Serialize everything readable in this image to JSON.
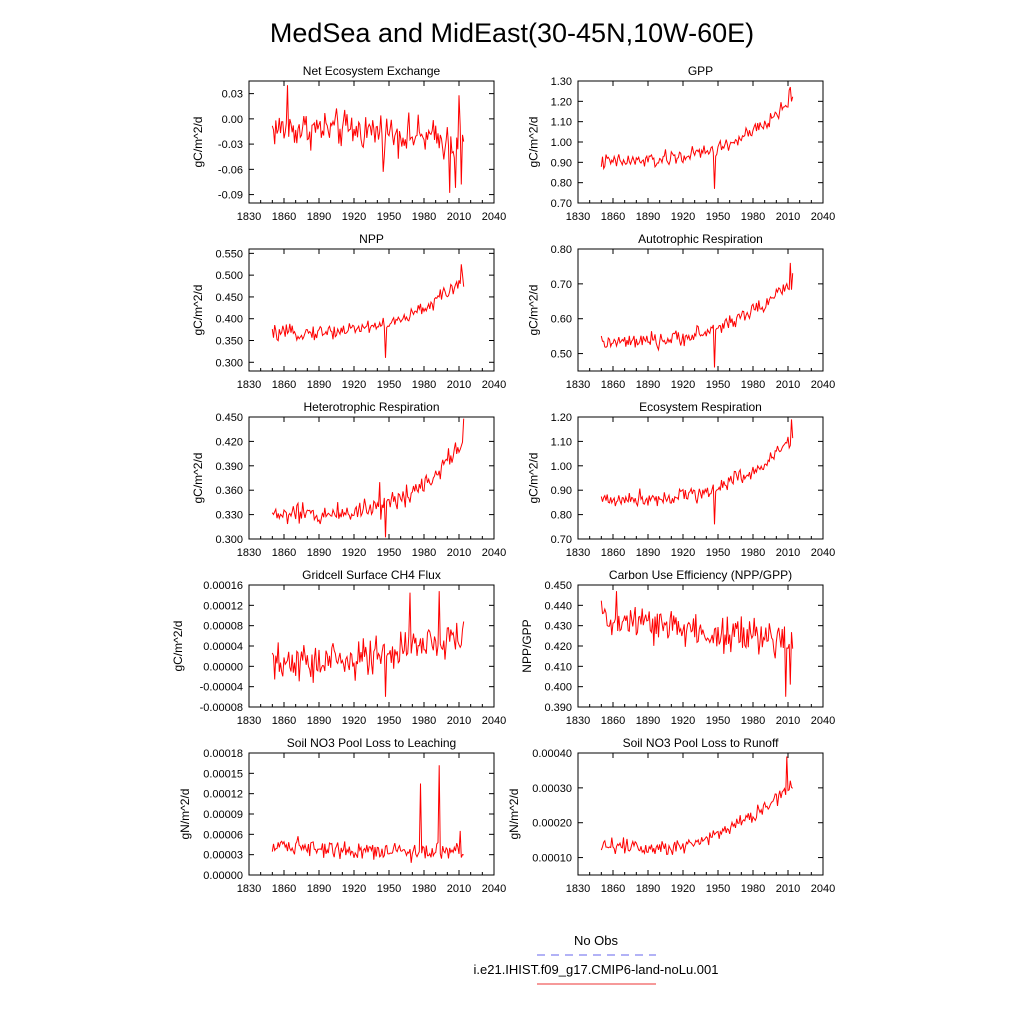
{
  "figure": {
    "title": "MedSea and MidEast(30-45N,10W-60E)",
    "legend": {
      "entries": [
        {
          "label": "No Obs",
          "color": "#6666ee",
          "dash": true
        },
        {
          "label": "i.e21.IHIST.f09_g17.CMIP6-land-noLu.001",
          "color": "#ee3333",
          "dash": false
        }
      ]
    },
    "series_color": "#ff0000"
  },
  "chart_data": [
    {
      "type": "line",
      "title": "Net Ecosystem Exchange",
      "xlabel": "",
      "ylabel": "gC/m^2/d",
      "xlim": [
        1830,
        2040
      ],
      "xticks": [
        1830,
        1860,
        1890,
        1920,
        1950,
        1980,
        2010,
        2040
      ],
      "ylim": [
        -0.1,
        0.045
      ],
      "yticks": [
        -0.09,
        -0.06,
        -0.03,
        0.0,
        0.03
      ],
      "yticklabels": [
        "-0.09",
        "-0.06",
        "-0.03",
        "0.00",
        "0.03"
      ],
      "years": [
        1850,
        2014
      ],
      "trend": [
        [
          1850,
          -0.012
        ],
        [
          1900,
          -0.012
        ],
        [
          1945,
          -0.015
        ],
        [
          1980,
          -0.022
        ],
        [
          2014,
          -0.03
        ]
      ],
      "amp": 0.02,
      "anomalies": [
        [
          1863,
          0.04
        ],
        [
          1945,
          -0.063
        ],
        [
          2002,
          -0.088
        ],
        [
          2007,
          -0.082
        ],
        [
          2010,
          0.028
        ],
        [
          2012,
          -0.078
        ]
      ]
    },
    {
      "type": "line",
      "title": "GPP",
      "xlabel": "",
      "ylabel": "gC/m^2/d",
      "xlim": [
        1830,
        2040
      ],
      "xticks": [
        1830,
        1860,
        1890,
        1920,
        1950,
        1980,
        2010,
        2040
      ],
      "ylim": [
        0.7,
        1.3
      ],
      "yticks": [
        0.7,
        0.8,
        0.9,
        1.0,
        1.1,
        1.2,
        1.3
      ],
      "yticklabels": [
        "0.70",
        "0.80",
        "0.90",
        "1.00",
        "1.10",
        "1.20",
        "1.30"
      ],
      "years": [
        1850,
        2014
      ],
      "trend": [
        [
          1850,
          0.9
        ],
        [
          1900,
          0.91
        ],
        [
          1940,
          0.95
        ],
        [
          1960,
          0.99
        ],
        [
          1990,
          1.08
        ],
        [
          2014,
          1.22
        ]
      ],
      "amp": 0.035,
      "anomalies": [
        [
          1947,
          0.77
        ],
        [
          2012,
          1.27
        ]
      ]
    },
    {
      "type": "line",
      "title": "NPP",
      "xlabel": "",
      "ylabel": "gC/m^2/d",
      "xlim": [
        1830,
        2040
      ],
      "xticks": [
        1830,
        1860,
        1890,
        1920,
        1950,
        1980,
        2010,
        2040
      ],
      "ylim": [
        0.28,
        0.56
      ],
      "yticks": [
        0.3,
        0.35,
        0.4,
        0.45,
        0.5,
        0.55
      ],
      "yticklabels": [
        "0.300",
        "0.350",
        "0.400",
        "0.450",
        "0.500",
        "0.550"
      ],
      "years": [
        1850,
        2014
      ],
      "trend": [
        [
          1850,
          0.365
        ],
        [
          1900,
          0.37
        ],
        [
          1940,
          0.385
        ],
        [
          1960,
          0.395
        ],
        [
          1990,
          0.44
        ],
        [
          2014,
          0.49
        ]
      ],
      "amp": 0.015,
      "anomalies": [
        [
          1947,
          0.31
        ],
        [
          2012,
          0.525
        ]
      ]
    },
    {
      "type": "line",
      "title": "Autotrophic Respiration",
      "xlabel": "",
      "ylabel": "gC/m^2/d",
      "xlim": [
        1830,
        2040
      ],
      "xticks": [
        1830,
        1860,
        1890,
        1920,
        1950,
        1980,
        2010,
        2040
      ],
      "ylim": [
        0.45,
        0.8
      ],
      "yticks": [
        0.5,
        0.6,
        0.7,
        0.8
      ],
      "yticklabels": [
        "0.50",
        "0.60",
        "0.70",
        "0.80"
      ],
      "years": [
        1850,
        2014
      ],
      "trend": [
        [
          1850,
          0.53
        ],
        [
          1900,
          0.535
        ],
        [
          1940,
          0.56
        ],
        [
          1960,
          0.59
        ],
        [
          1990,
          0.64
        ],
        [
          2014,
          0.71
        ]
      ],
      "amp": 0.02,
      "anomalies": [
        [
          1947,
          0.46
        ],
        [
          2012,
          0.76
        ]
      ]
    },
    {
      "type": "line",
      "title": "Heterotrophic Respiration",
      "xlabel": "",
      "ylabel": "gC/m^2/d",
      "xlim": [
        1830,
        2040
      ],
      "xticks": [
        1830,
        1860,
        1890,
        1920,
        1950,
        1980,
        2010,
        2040
      ],
      "ylim": [
        0.3,
        0.45
      ],
      "yticks": [
        0.3,
        0.33,
        0.36,
        0.39,
        0.42,
        0.45
      ],
      "yticklabels": [
        "0.300",
        "0.330",
        "0.360",
        "0.390",
        "0.420",
        "0.450"
      ],
      "years": [
        1850,
        2014
      ],
      "trend": [
        [
          1850,
          0.33
        ],
        [
          1900,
          0.33
        ],
        [
          1940,
          0.34
        ],
        [
          1960,
          0.35
        ],
        [
          1990,
          0.38
        ],
        [
          2014,
          0.42
        ]
      ],
      "amp": 0.012,
      "anomalies": [
        [
          1942,
          0.37
        ],
        [
          1947,
          0.302
        ],
        [
          2014,
          0.448
        ]
      ]
    },
    {
      "type": "line",
      "title": "Ecosystem Respiration",
      "xlabel": "",
      "ylabel": "gC/m^2/d",
      "xlim": [
        1830,
        2040
      ],
      "xticks": [
        1830,
        1860,
        1890,
        1920,
        1950,
        1980,
        2010,
        2040
      ],
      "ylim": [
        0.7,
        1.2
      ],
      "yticks": [
        0.7,
        0.8,
        0.9,
        1.0,
        1.1,
        1.2
      ],
      "yticklabels": [
        "0.70",
        "0.80",
        "0.90",
        "1.00",
        "1.10",
        "1.20"
      ],
      "years": [
        1850,
        2014
      ],
      "trend": [
        [
          1850,
          0.86
        ],
        [
          1900,
          0.87
        ],
        [
          1940,
          0.89
        ],
        [
          1960,
          0.94
        ],
        [
          1990,
          1.0
        ],
        [
          2014,
          1.12
        ]
      ],
      "amp": 0.03,
      "anomalies": [
        [
          1947,
          0.76
        ],
        [
          2013,
          1.19
        ]
      ]
    },
    {
      "type": "line",
      "title": "Gridcell Surface CH4 Flux",
      "xlabel": "",
      "ylabel": "gC/m^2/d",
      "xlim": [
        1830,
        2040
      ],
      "xticks": [
        1830,
        1860,
        1890,
        1920,
        1950,
        1980,
        2010,
        2040
      ],
      "ylim": [
        -8e-05,
        0.00016
      ],
      "yticks": [
        -8e-05,
        -4e-05,
        0.0,
        4e-05,
        8e-05,
        0.00012,
        0.00016
      ],
      "yticklabels": [
        "-0.00008",
        "-0.00004",
        "0.00000",
        "0.00004",
        "0.00008",
        "0.00012",
        "0.00016"
      ],
      "years": [
        1850,
        2014
      ],
      "trend": [
        [
          1850,
          0.0
        ],
        [
          1900,
          1e-05
        ],
        [
          1940,
          2e-05
        ],
        [
          1960,
          3e-05
        ],
        [
          2014,
          6e-05
        ]
      ],
      "amp": 3.5e-05,
      "anomalies": [
        [
          1947,
          -6e-05
        ],
        [
          1968,
          0.000145
        ],
        [
          1993,
          0.000148
        ]
      ]
    },
    {
      "type": "line",
      "title": "Carbon Use Efficiency (NPP/GPP)",
      "xlabel": "",
      "ylabel": "NPP/GPP",
      "xlim": [
        1830,
        2040
      ],
      "xticks": [
        1830,
        1860,
        1890,
        1920,
        1950,
        1980,
        2010,
        2040
      ],
      "ylim": [
        0.39,
        0.45
      ],
      "yticks": [
        0.39,
        0.4,
        0.41,
        0.42,
        0.43,
        0.44,
        0.45
      ],
      "yticklabels": [
        "0.390",
        "0.400",
        "0.410",
        "0.420",
        "0.430",
        "0.440",
        "0.450"
      ],
      "years": [
        1850,
        2014
      ],
      "trend": [
        [
          1850,
          0.433
        ],
        [
          1900,
          0.43
        ],
        [
          1950,
          0.426
        ],
        [
          2014,
          0.422
        ]
      ],
      "amp": 0.009,
      "anomalies": [
        [
          1863,
          0.447
        ],
        [
          2008,
          0.395
        ],
        [
          2012,
          0.401
        ]
      ]
    },
    {
      "type": "line",
      "title": "Soil NO3 Pool Loss to Leaching",
      "xlabel": "",
      "ylabel": "gN/m^2/d",
      "xlim": [
        1830,
        2040
      ],
      "xticks": [
        1830,
        1860,
        1890,
        1920,
        1950,
        1980,
        2010,
        2040
      ],
      "ylim": [
        0.0,
        0.00018
      ],
      "yticks": [
        0.0,
        3e-05,
        6e-05,
        9e-05,
        0.00012,
        0.00015,
        0.00018
      ],
      "yticklabels": [
        "0.00000",
        "0.00003",
        "0.00006",
        "0.00009",
        "0.00012",
        "0.00015",
        "0.00018"
      ],
      "years": [
        1850,
        2014
      ],
      "trend": [
        [
          1850,
          4.5e-05
        ],
        [
          1900,
          4e-05
        ],
        [
          1950,
          3.5e-05
        ],
        [
          2014,
          3.5e-05
        ]
      ],
      "amp": 1.2e-05,
      "anomalies": [
        [
          1977,
          0.000135
        ],
        [
          1993,
          0.000162
        ],
        [
          2011,
          6.5e-05
        ]
      ]
    },
    {
      "type": "line",
      "title": "Soil NO3 Pool Loss to Runoff",
      "xlabel": "",
      "ylabel": "gN/m^2/d",
      "xlim": [
        1830,
        2040
      ],
      "xticks": [
        1830,
        1860,
        1890,
        1920,
        1950,
        1980,
        2010,
        2040
      ],
      "ylim": [
        5e-05,
        0.0004
      ],
      "yticks": [
        0.0001,
        0.0002,
        0.0003,
        0.0004
      ],
      "yticklabels": [
        "0.00010",
        "0.00020",
        "0.00030",
        "0.00040"
      ],
      "years": [
        1850,
        2014
      ],
      "trend": [
        [
          1850,
          0.000135
        ],
        [
          1900,
          0.00013
        ],
        [
          1930,
          0.00014
        ],
        [
          1960,
          0.00019
        ],
        [
          1990,
          0.00024
        ],
        [
          2014,
          0.00031
        ]
      ],
      "amp": 2.2e-05,
      "anomalies": [
        [
          2009,
          0.00039
        ]
      ]
    }
  ]
}
